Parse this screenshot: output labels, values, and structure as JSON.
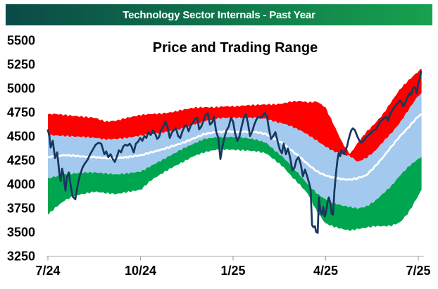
{
  "header": {
    "title": "Technology Sector Internals - Past Year",
    "bg_left": "#0B4A47",
    "bg_mid": "#0E6B4A",
    "bg_right": "#17A24F",
    "text_color": "#FFFFFF"
  },
  "chart_data": {
    "type": "area",
    "title": "Price and Trading Range",
    "xlabel": "",
    "ylabel": "",
    "legend": "none",
    "grid": false,
    "x_axis": {
      "unit": "months since 7/24",
      "range": [
        0,
        12.14
      ],
      "ticks": [
        {
          "t": 0,
          "label": "7/24"
        },
        {
          "t": 3,
          "label": "10/24"
        },
        {
          "t": 6,
          "label": "1/25"
        },
        {
          "t": 9,
          "label": "4/25"
        },
        {
          "t": 12,
          "label": "7/25"
        }
      ]
    },
    "y_axis": {
      "range": [
        3250,
        5500
      ],
      "ticks": [
        5500,
        5250,
        5000,
        4750,
        4500,
        4250,
        4000,
        3750,
        3500,
        3250
      ]
    },
    "colors": {
      "band_red": "#FF0000",
      "band_blue": "#A3C9EE",
      "band_green": "#00A64F",
      "mid_line": "#FFFFFF",
      "price_line": "#17375E",
      "axis": "#A6A6A6",
      "axis_line": "#BFBFBF",
      "label": "#000000"
    },
    "bands": {
      "t": [
        0,
        0.27,
        0.55,
        0.84,
        1.19,
        1.53,
        1.87,
        2.21,
        2.56,
        3.01,
        3.35,
        3.7,
        4.04,
        4.38,
        4.72,
        5.07,
        5.41,
        5.75,
        6.09,
        6.43,
        6.78,
        7.07,
        7.35,
        7.62,
        7.89,
        8.17,
        8.44,
        8.72,
        8.99,
        9.26,
        9.54,
        9.79,
        10.04,
        10.31,
        10.59,
        10.86,
        11.13,
        11.41,
        11.68,
        11.95,
        12.14
      ],
      "envelope_top": [
        4730,
        4730,
        4720,
        4710,
        4700,
        4690,
        4650,
        4660,
        4690,
        4720,
        4730,
        4735,
        4750,
        4775,
        4795,
        4800,
        4800,
        4810,
        4810,
        4820,
        4825,
        4830,
        4830,
        4840,
        4860,
        4865,
        4850,
        4860,
        4800,
        4620,
        4430,
        4310,
        4430,
        4540,
        4630,
        4730,
        4860,
        4990,
        5080,
        5160,
        5210
      ],
      "red_bottom_blue_top": [
        4510,
        4505,
        4500,
        4495,
        4490,
        4480,
        4465,
        4470,
        4480,
        4505,
        4520,
        4535,
        4555,
        4580,
        4620,
        4655,
        4680,
        4690,
        4690,
        4690,
        4690,
        4680,
        4650,
        4630,
        4600,
        4560,
        4510,
        4450,
        4390,
        4340,
        4310,
        4290,
        4230,
        4270,
        4340,
        4440,
        4530,
        4640,
        4770,
        4900,
        4960
      ],
      "white_mid": [
        4280,
        4290,
        4300,
        4295,
        4285,
        4280,
        4270,
        4270,
        4280,
        4300,
        4330,
        4360,
        4395,
        4430,
        4475,
        4520,
        4540,
        4545,
        4545,
        4545,
        4540,
        4520,
        4470,
        4420,
        4350,
        4280,
        4200,
        4130,
        4090,
        4065,
        4050,
        4045,
        4060,
        4090,
        4180,
        4280,
        4390,
        4500,
        4590,
        4690,
        4740
      ],
      "blue_bottom_green_top": [
        4060,
        4080,
        4100,
        4110,
        4120,
        4120,
        4110,
        4100,
        4110,
        4130,
        4190,
        4250,
        4310,
        4370,
        4420,
        4470,
        4485,
        4490,
        4490,
        4480,
        4460,
        4430,
        4350,
        4280,
        4190,
        4090,
        3990,
        3900,
        3840,
        3800,
        3775,
        3760,
        3745,
        3765,
        3820,
        3900,
        3980,
        4090,
        4180,
        4250,
        4290
      ],
      "envelope_bottom": [
        3680,
        3760,
        3830,
        3875,
        3900,
        3920,
        3905,
        3895,
        3915,
        3940,
        4040,
        4110,
        4175,
        4230,
        4290,
        4330,
        4355,
        4360,
        4355,
        4350,
        4340,
        4320,
        4250,
        4180,
        4080,
        3990,
        3890,
        3710,
        3590,
        3555,
        3530,
        3515,
        3530,
        3545,
        3560,
        3560,
        3565,
        3600,
        3700,
        3850,
        3960
      ]
    },
    "series": [
      {
        "name": "Price",
        "color": "#17375E",
        "points": [
          [
            0,
            4560
          ],
          [
            0.05,
            4500
          ],
          [
            0.09,
            4380
          ],
          [
            0.16,
            4450
          ],
          [
            0.23,
            4270
          ],
          [
            0.3,
            4330
          ],
          [
            0.37,
            4120
          ],
          [
            0.41,
            4030
          ],
          [
            0.46,
            4160
          ],
          [
            0.5,
            4100
          ],
          [
            0.57,
            3930
          ],
          [
            0.62,
            4080
          ],
          [
            0.68,
            4120
          ],
          [
            0.73,
            4000
          ],
          [
            0.8,
            3870
          ],
          [
            0.89,
            3840
          ],
          [
            0.96,
            3980
          ],
          [
            1.03,
            4080
          ],
          [
            1.12,
            4170
          ],
          [
            1.19,
            4210
          ],
          [
            1.28,
            4250
          ],
          [
            1.37,
            4310
          ],
          [
            1.46,
            4360
          ],
          [
            1.55,
            4410
          ],
          [
            1.64,
            4430
          ],
          [
            1.73,
            4420
          ],
          [
            1.83,
            4310
          ],
          [
            1.89,
            4340
          ],
          [
            1.96,
            4280
          ],
          [
            2.03,
            4310
          ],
          [
            2.1,
            4260
          ],
          [
            2.17,
            4230
          ],
          [
            2.24,
            4290
          ],
          [
            2.3,
            4350
          ],
          [
            2.37,
            4330
          ],
          [
            2.44,
            4390
          ],
          [
            2.51,
            4410
          ],
          [
            2.58,
            4400
          ],
          [
            2.65,
            4420
          ],
          [
            2.71,
            4390
          ],
          [
            2.78,
            4330
          ],
          [
            2.85,
            4420
          ],
          [
            2.92,
            4440
          ],
          [
            2.99,
            4480
          ],
          [
            3.06,
            4450
          ],
          [
            3.13,
            4500
          ],
          [
            3.19,
            4480
          ],
          [
            3.26,
            4540
          ],
          [
            3.33,
            4510
          ],
          [
            3.4,
            4560
          ],
          [
            3.47,
            4530
          ],
          [
            3.54,
            4470
          ],
          [
            3.6,
            4490
          ],
          [
            3.67,
            4560
          ],
          [
            3.74,
            4600
          ],
          [
            3.81,
            4650
          ],
          [
            3.88,
            4590
          ],
          [
            3.95,
            4480
          ],
          [
            4.02,
            4540
          ],
          [
            4.08,
            4560
          ],
          [
            4.15,
            4580
          ],
          [
            4.22,
            4500
          ],
          [
            4.29,
            4480
          ],
          [
            4.36,
            4550
          ],
          [
            4.43,
            4600
          ],
          [
            4.49,
            4610
          ],
          [
            4.56,
            4550
          ],
          [
            4.63,
            4610
          ],
          [
            4.7,
            4640
          ],
          [
            4.77,
            4680
          ],
          [
            4.84,
            4690
          ],
          [
            4.9,
            4570
          ],
          [
            4.97,
            4600
          ],
          [
            5.04,
            4660
          ],
          [
            5.11,
            4720
          ],
          [
            5.18,
            4740
          ],
          [
            5.25,
            4620
          ],
          [
            5.32,
            4640
          ],
          [
            5.38,
            4700
          ],
          [
            5.45,
            4550
          ],
          [
            5.52,
            4480
          ],
          [
            5.59,
            4260
          ],
          [
            5.66,
            4400
          ],
          [
            5.73,
            4500
          ],
          [
            5.79,
            4560
          ],
          [
            5.86,
            4600
          ],
          [
            5.93,
            4690
          ],
          [
            6.0,
            4650
          ],
          [
            6.07,
            4520
          ],
          [
            6.14,
            4450
          ],
          [
            6.21,
            4500
          ],
          [
            6.27,
            4590
          ],
          [
            6.34,
            4680
          ],
          [
            6.41,
            4730
          ],
          [
            6.48,
            4640
          ],
          [
            6.55,
            4500
          ],
          [
            6.62,
            4550
          ],
          [
            6.69,
            4620
          ],
          [
            6.75,
            4670
          ],
          [
            6.82,
            4700
          ],
          [
            6.89,
            4690
          ],
          [
            6.96,
            4710
          ],
          [
            7.03,
            4740
          ],
          [
            7.1,
            4700
          ],
          [
            7.16,
            4580
          ],
          [
            7.23,
            4470
          ],
          [
            7.3,
            4500
          ],
          [
            7.37,
            4540
          ],
          [
            7.44,
            4450
          ],
          [
            7.51,
            4360
          ],
          [
            7.58,
            4320
          ],
          [
            7.64,
            4420
          ],
          [
            7.71,
            4310
          ],
          [
            7.78,
            4370
          ],
          [
            7.85,
            4270
          ],
          [
            7.92,
            4140
          ],
          [
            7.99,
            4170
          ],
          [
            8.05,
            4250
          ],
          [
            8.12,
            4280
          ],
          [
            8.19,
            4210
          ],
          [
            8.26,
            4080
          ],
          [
            8.33,
            4150
          ],
          [
            8.4,
            4080
          ],
          [
            8.47,
            4000
          ],
          [
            8.51,
            3950
          ],
          [
            8.56,
            3570
          ],
          [
            8.6,
            3550
          ],
          [
            8.65,
            3560
          ],
          [
            8.69,
            3500
          ],
          [
            8.74,
            3490
          ],
          [
            8.78,
            3860
          ],
          [
            8.83,
            3720
          ],
          [
            8.88,
            3680
          ],
          [
            8.92,
            3760
          ],
          [
            8.97,
            3660
          ],
          [
            9.01,
            3700
          ],
          [
            9.06,
            3810
          ],
          [
            9.1,
            3860
          ],
          [
            9.15,
            3800
          ],
          [
            9.19,
            3690
          ],
          [
            9.24,
            3680
          ],
          [
            9.28,
            3920
          ],
          [
            9.33,
            4100
          ],
          [
            9.38,
            4250
          ],
          [
            9.42,
            4320
          ],
          [
            9.47,
            4290
          ],
          [
            9.51,
            4350
          ],
          [
            9.56,
            4330
          ],
          [
            9.6,
            4310
          ],
          [
            9.65,
            4360
          ],
          [
            9.7,
            4400
          ],
          [
            9.74,
            4460
          ],
          [
            9.79,
            4520
          ],
          [
            9.83,
            4560
          ],
          [
            9.88,
            4580
          ],
          [
            9.95,
            4560
          ],
          [
            10.02,
            4500
          ],
          [
            10.08,
            4460
          ],
          [
            10.15,
            4430
          ],
          [
            10.22,
            4450
          ],
          [
            10.29,
            4480
          ],
          [
            10.36,
            4500
          ],
          [
            10.43,
            4520
          ],
          [
            10.49,
            4540
          ],
          [
            10.56,
            4560
          ],
          [
            10.63,
            4570
          ],
          [
            10.7,
            4610
          ],
          [
            10.77,
            4650
          ],
          [
            10.84,
            4670
          ],
          [
            10.9,
            4690
          ],
          [
            10.97,
            4700
          ],
          [
            11.02,
            4660
          ],
          [
            11.09,
            4730
          ],
          [
            11.16,
            4770
          ],
          [
            11.22,
            4800
          ],
          [
            11.29,
            4830
          ],
          [
            11.36,
            4850
          ],
          [
            11.41,
            4870
          ],
          [
            11.45,
            4860
          ],
          [
            11.5,
            4810
          ],
          [
            11.54,
            4820
          ],
          [
            11.59,
            4860
          ],
          [
            11.64,
            4900
          ],
          [
            11.68,
            4920
          ],
          [
            11.73,
            4950
          ],
          [
            11.77,
            4930
          ],
          [
            11.82,
            4990
          ],
          [
            11.86,
            5010
          ],
          [
            11.91,
            5000
          ],
          [
            11.95,
            4950
          ],
          [
            12.0,
            5050
          ],
          [
            12.05,
            5100
          ],
          [
            12.09,
            5170
          ]
        ]
      }
    ]
  }
}
